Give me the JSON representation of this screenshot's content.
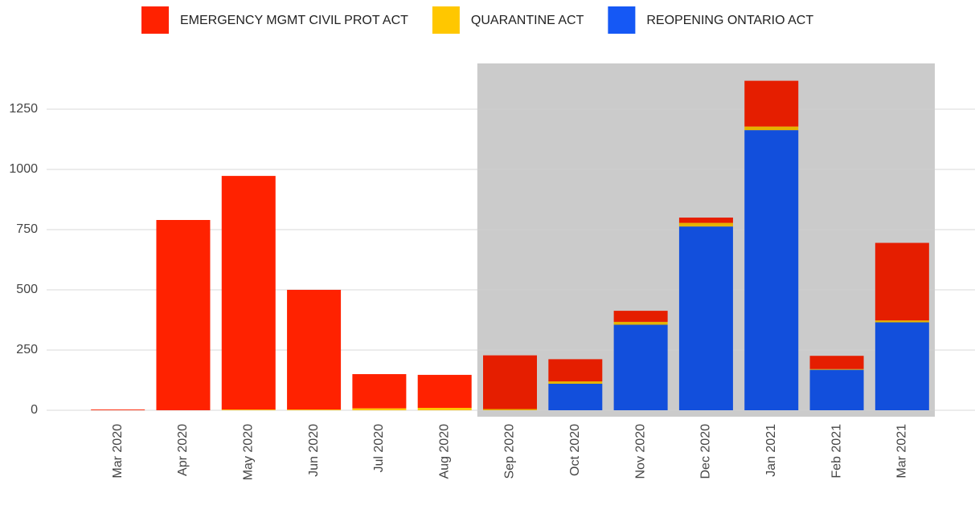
{
  "chart_data": {
    "type": "stacked_bar",
    "categories": [
      "Mar 2020",
      "Apr 2020",
      "May 2020",
      "Jun 2020",
      "Jul 2020",
      "Aug 2020",
      "Sep 2020",
      "Oct 2020",
      "Nov 2020",
      "Dec 2020",
      "Jan 2021",
      "Feb 2021",
      "Mar 2021"
    ],
    "series": [
      {
        "name": "EMERGENCY MGMT CIVIL PROT ACT",
        "color": "#ff2200",
        "values": [
          3,
          790,
          970,
          497,
          142,
          137,
          223,
          92,
          46,
          22,
          190,
          55,
          322
        ]
      },
      {
        "name": "QUARANTINE ACT",
        "color": "#ffc700",
        "values": [
          0,
          0,
          3,
          3,
          8,
          10,
          5,
          10,
          12,
          15,
          15,
          3,
          8
        ]
      },
      {
        "name": "REOPENING ONTARIO ACT",
        "color": "#1558f5",
        "values": [
          0,
          0,
          0,
          0,
          0,
          0,
          0,
          110,
          355,
          763,
          1163,
          168,
          365
        ]
      }
    ],
    "ylim": [
      0,
      1440
    ],
    "yticks": [
      0,
      250,
      500,
      750,
      1000,
      1250
    ],
    "grid": true
  }
}
